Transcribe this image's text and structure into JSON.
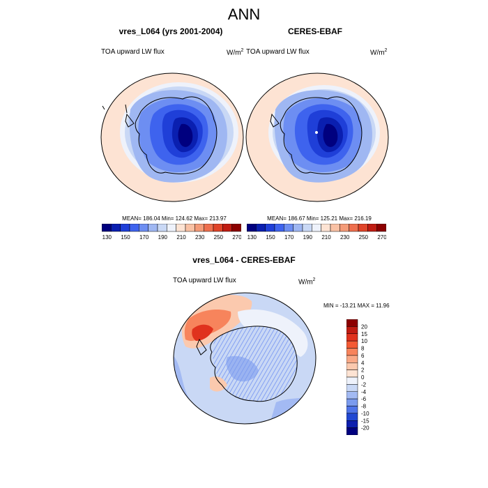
{
  "page": {
    "season": "ANN"
  },
  "panels": [
    {
      "title": "vres_L064 (yrs 2001-2004)",
      "variable": "TOA upward LW flux",
      "units": "W/m",
      "units_sup": "2",
      "stats": "MEAN= 186.04  Min= 124.62  Max= 213.97"
    },
    {
      "title": "CERES-EBAF",
      "variable": "TOA upward LW flux",
      "units": "W/m",
      "units_sup": "2",
      "stats": "MEAN= 186.67  Min= 125.21  Max= 216.19"
    },
    {
      "title": "vres_L064 - CERES-EBAF",
      "variable": "TOA upward LW flux",
      "units": "W/m",
      "units_sup": "2",
      "stats": "MIN = -13.21  MAX =  11.96"
    }
  ],
  "colorbar_abs": {
    "ticks": [
      "130",
      "150",
      "170",
      "190",
      "210",
      "230",
      "250",
      "270"
    ],
    "colors": [
      "#00007f",
      "#0a1fb0",
      "#1f3fd8",
      "#3e63ee",
      "#6d8ef2",
      "#9fb7f2",
      "#c9d8f5",
      "#eef2fb",
      "#fde3d3",
      "#f9c1a4",
      "#f49b78",
      "#ee6f4e",
      "#e04429",
      "#c01c12",
      "#8c0000"
    ]
  },
  "colorbar_diff": {
    "ticks": [
      "20",
      "15",
      "10",
      "8",
      "6",
      "4",
      "2",
      "0",
      "-2",
      "-4",
      "-6",
      "-8",
      "-10",
      "-15",
      "-20"
    ],
    "colors": [
      "#8c0000",
      "#c01c12",
      "#e0321d",
      "#f45a34",
      "#f7845c",
      "#f9a987",
      "#fbc9ae",
      "#fde3d3",
      "#eef2fb",
      "#c9d8f5",
      "#a3baf3",
      "#7b9bee",
      "#4f74e8",
      "#2148d2",
      "#0d1fae",
      "#00007f"
    ]
  },
  "map_colors": {
    "ocean_far": "#fde3d3",
    "ocean_mid": "#d6e3f8",
    "ocean_band": "#c4d5f6",
    "interior1": "#8aa8f1",
    "interior2": "#5d84ec",
    "interior3": "#3360e3",
    "interior4": "#1a3fc9",
    "interior5": "#0b22a2",
    "diff_neg_light": "#c9d8f5",
    "diff_neg_mid": "#a3baf3",
    "diff_pos_light": "#fbc9ae",
    "diff_pos_mid": "#f4987a",
    "diff_pos_dark": "#e05a3a"
  }
}
